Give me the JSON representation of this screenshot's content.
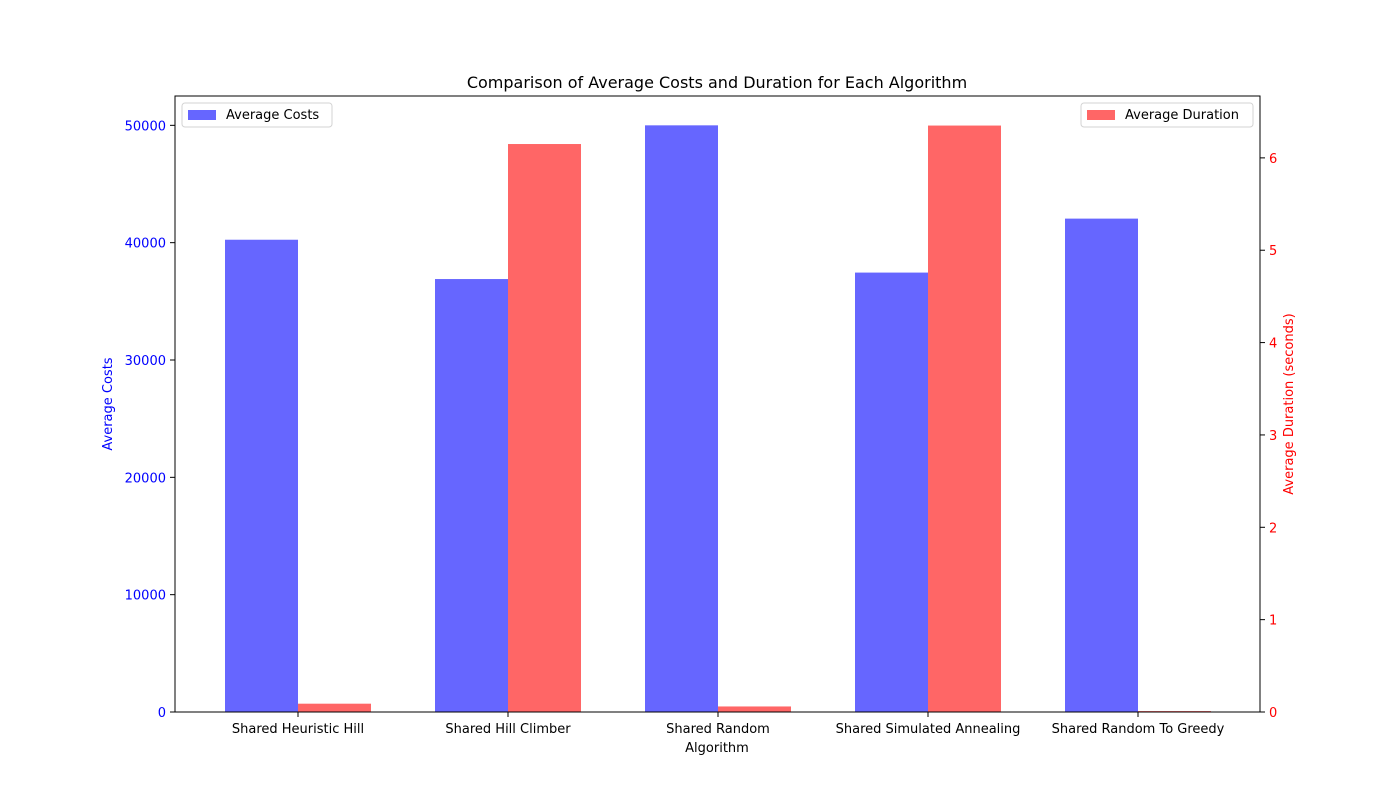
{
  "chart_data": {
    "type": "bar",
    "title": "Comparison of Average Costs and Duration for Each Algorithm",
    "xlabel": "Algorithm",
    "categories": [
      "Shared Heuristic Hill",
      "Shared Hill Climber",
      "Shared Random",
      "Shared Simulated Annealing",
      "Shared Random To Greedy"
    ],
    "series": [
      {
        "name": "Average Costs",
        "axis": "left",
        "color": "#6666ff",
        "values": [
          40250,
          36900,
          50000,
          37450,
          42050
        ]
      },
      {
        "name": "Average Duration",
        "axis": "right",
        "color": "#ff6666",
        "values": [
          0.09,
          6.15,
          0.06,
          6.35,
          0.01
        ]
      }
    ],
    "left_axis": {
      "label": "Average Costs",
      "color": "#0000ff",
      "ylim": [
        0,
        52500
      ],
      "ticks": [
        0,
        10000,
        20000,
        30000,
        40000,
        50000
      ]
    },
    "right_axis": {
      "label": "Average Duration (seconds)",
      "color": "#ff0000",
      "ylim": [
        0,
        6.67
      ],
      "ticks": [
        0,
        1,
        2,
        3,
        4,
        5,
        6
      ]
    },
    "legend": {
      "left_series_placement": "upper-left",
      "right_series_placement": "upper-right"
    },
    "grid": false
  }
}
